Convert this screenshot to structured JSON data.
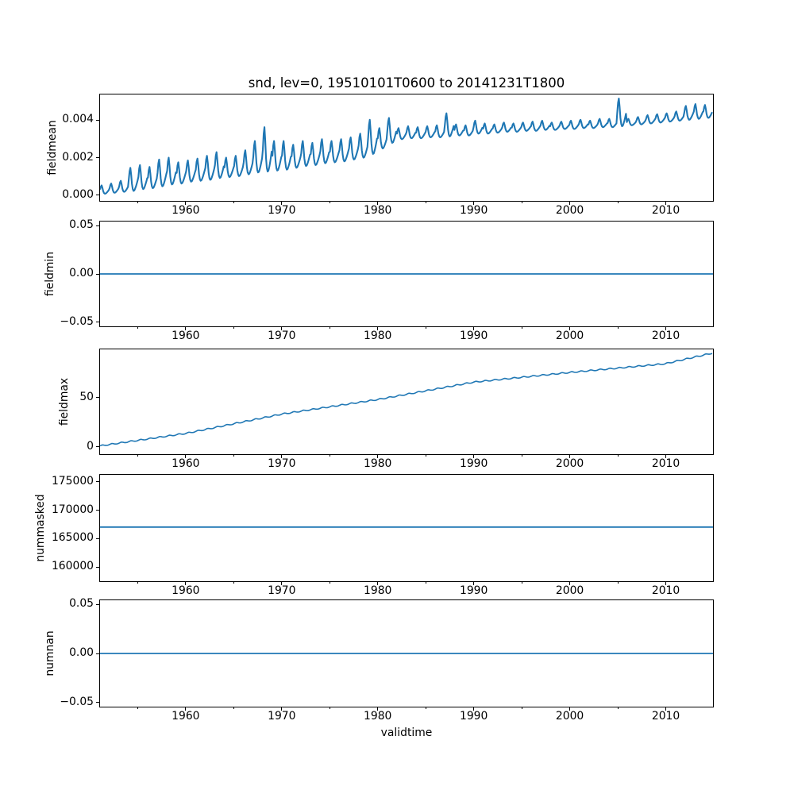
{
  "chart_data": {
    "type": "line",
    "title": "snd, lev=0, 19510101T0600 to 20141231T1800",
    "line_color": "#1f77b4",
    "background_color": "#ffffff",
    "text_color": "#000000",
    "legend": "none",
    "grid": false,
    "x_axis": {
      "label": "validtime",
      "lim": [
        1951.0,
        2015.0
      ],
      "major_ticks": [
        1960,
        1970,
        1980,
        1990,
        2000,
        2010
      ],
      "major_tick_labels": [
        "1960",
        "1970",
        "1980",
        "1990",
        "2000",
        "2010"
      ],
      "minor_ticks": [
        1955,
        1965,
        1975,
        1985,
        1995,
        2005
      ]
    },
    "panels": [
      {
        "id": "fieldmean",
        "ylabel": "fieldmean",
        "ylim": [
          -0.000339,
          0.005418
        ],
        "yticks": [
          0.0,
          0.002,
          0.004
        ],
        "ytick_labels": [
          "0.000",
          "0.002",
          "0.004"
        ],
        "series": {
          "kind": "seasonal_envelope",
          "year0": 1951,
          "scale": 0.001,
          "shape": [
            0.5,
            0.85,
            1.0,
            0.7,
            0.3,
            0.08,
            0.0,
            0.02,
            0.1,
            0.2,
            0.32,
            0.45
          ],
          "env": [
            [
              0.05,
              0.5
            ],
            [
              0.1,
              0.6
            ],
            [
              0.15,
              0.75
            ],
            [
              0.2,
              1.45
            ],
            [
              0.3,
              1.6
            ],
            [
              0.35,
              1.5
            ],
            [
              0.45,
              1.9
            ],
            [
              0.55,
              2.0
            ],
            [
              0.6,
              1.75
            ],
            [
              0.7,
              1.85
            ],
            [
              0.75,
              1.95
            ],
            [
              0.8,
              2.1
            ],
            [
              0.9,
              2.3
            ],
            [
              0.95,
              2.0
            ],
            [
              1.0,
              2.1
            ],
            [
              1.1,
              2.4
            ],
            [
              1.2,
              2.9
            ],
            [
              1.25,
              3.65
            ],
            [
              1.3,
              2.9
            ],
            [
              1.35,
              2.9
            ],
            [
              1.45,
              2.7
            ],
            [
              1.55,
              2.9
            ],
            [
              1.6,
              2.8
            ],
            [
              1.7,
              3.0
            ],
            [
              1.75,
              2.9
            ],
            [
              1.8,
              3.0
            ],
            [
              1.9,
              3.1
            ],
            [
              2.0,
              3.3
            ],
            [
              2.2,
              4.05
            ],
            [
              2.5,
              3.6
            ],
            [
              2.8,
              4.15
            ],
            [
              3.0,
              3.6
            ],
            [
              3.05,
              3.7
            ],
            [
              3.05,
              3.65
            ],
            [
              3.1,
              3.7
            ],
            [
              3.1,
              3.75
            ],
            [
              3.15,
              4.4
            ],
            [
              3.2,
              3.8
            ],
            [
              3.2,
              3.75
            ],
            [
              3.3,
              4.0
            ],
            [
              3.3,
              3.85
            ],
            [
              3.35,
              3.8
            ],
            [
              3.4,
              3.9
            ],
            [
              3.4,
              3.85
            ],
            [
              3.45,
              3.9
            ],
            [
              3.45,
              3.95
            ],
            [
              3.5,
              4.0
            ],
            [
              3.5,
              3.9
            ],
            [
              3.55,
              3.95
            ],
            [
              3.55,
              4.0
            ],
            [
              3.6,
              4.05
            ],
            [
              3.6,
              4.0
            ],
            [
              3.65,
              4.1
            ],
            [
              3.65,
              4.1
            ],
            [
              3.7,
              5.2
            ],
            [
              3.75,
              4.1
            ],
            [
              3.8,
              4.2
            ],
            [
              3.85,
              4.3
            ],
            [
              3.9,
              4.35
            ],
            [
              3.95,
              4.4
            ],
            [
              4.0,
              4.5
            ],
            [
              4.05,
              4.8
            ],
            [
              4.1,
              4.9
            ],
            [
              4.15,
              4.85
            ]
          ]
        }
      },
      {
        "id": "fieldmin",
        "ylabel": "fieldmin",
        "ylim": [
          -0.055,
          0.055
        ],
        "yticks": [
          -0.05,
          0.0,
          0.05
        ],
        "ytick_labels": [
          "−0.05",
          "0.00",
          "0.05"
        ],
        "series": {
          "kind": "constant",
          "value": 0.0
        }
      },
      {
        "id": "fieldmax",
        "ylabel": "fieldmax",
        "ylim": [
          -8.3,
          100.2
        ],
        "yticks": [
          0,
          50
        ],
        "ytick_labels": [
          "0",
          "50"
        ],
        "series": {
          "kind": "trend_ripple",
          "year0": 1951,
          "amplitude": 0.9,
          "shape": [
            0.3,
            0.6,
            0.9,
            1.0,
            0.8,
            0.5,
            0.15,
            -0.1,
            -0.25,
            -0.3,
            -0.2,
            0.0
          ],
          "values": [
            0,
            1.5,
            2.9,
            4.4,
            5.8,
            7.2,
            8.7,
            10.1,
            11.6,
            13,
            15,
            17,
            19,
            21,
            23,
            25,
            27,
            29,
            31,
            33,
            34.5,
            36,
            37.5,
            39,
            40.5,
            42,
            43.5,
            45,
            46.5,
            48,
            49.8,
            51.6,
            53.4,
            55.2,
            57,
            58.8,
            60.6,
            62.4,
            64.2,
            66,
            67,
            68,
            69,
            70,
            71,
            72,
            73,
            74,
            75,
            76,
            76.9,
            77.8,
            78.7,
            79.6,
            80.5,
            81.4,
            82.3,
            83.2,
            84.1,
            85,
            87.3,
            89.5,
            91.8,
            94
          ]
        }
      },
      {
        "id": "nummasked",
        "ylabel": "nummasked",
        "ylim": [
          157350,
          176400
        ],
        "yticks": [
          160000,
          165000,
          170000,
          175000
        ],
        "ytick_labels": [
          "160000",
          "165000",
          "170000",
          "175000"
        ],
        "series": {
          "kind": "constant",
          "value": 167050
        }
      },
      {
        "id": "numnan",
        "ylabel": "numnan",
        "ylim": [
          -0.055,
          0.055
        ],
        "yticks": [
          -0.05,
          0.0,
          0.05
        ],
        "ytick_labels": [
          "−0.05",
          "0.00",
          "0.05"
        ],
        "series": {
          "kind": "constant",
          "value": 0.0
        }
      }
    ]
  }
}
